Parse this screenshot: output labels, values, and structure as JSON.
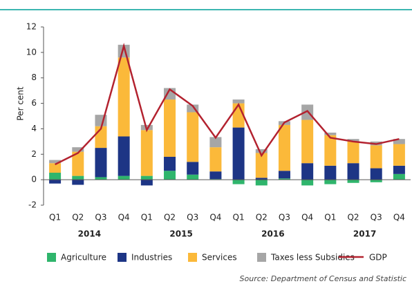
{
  "chart_data": {
    "type": "stacked_bar_line",
    "y_label": "Per cent",
    "categories": [
      "Q1",
      "Q2",
      "Q3",
      "Q4",
      "Q1",
      "Q2",
      "Q3",
      "Q4",
      "Q1",
      "Q2",
      "Q3",
      "Q4",
      "Q1",
      "Q2",
      "Q3",
      "Q4"
    ],
    "year_groups": [
      "2014",
      "2015",
      "2016",
      "2017"
    ],
    "series": [
      {
        "name": "Agriculture",
        "color": "#2fb56c",
        "values": [
          0.55,
          0.3,
          0.2,
          0.3,
          0.3,
          0.7,
          0.4,
          0.05,
          -0.35,
          -0.45,
          0.1,
          -0.45,
          -0.35,
          -0.25,
          -0.2,
          0.45
        ]
      },
      {
        "name": "Industries",
        "color": "#1d3585",
        "values": [
          -0.3,
          -0.4,
          2.3,
          3.1,
          -0.45,
          1.1,
          1.0,
          0.6,
          4.1,
          0.15,
          0.6,
          1.3,
          1.1,
          1.3,
          0.9,
          0.65
        ]
      },
      {
        "name": "Services",
        "color": "#fbb93a",
        "values": [
          0.75,
          1.9,
          1.7,
          6.2,
          3.6,
          4.5,
          3.9,
          1.9,
          1.9,
          1.95,
          3.6,
          3.4,
          2.4,
          1.7,
          1.8,
          1.7
        ]
      },
      {
        "name": "Taxes less Subsidies",
        "color": "#a6a6a6",
        "values": [
          0.25,
          0.35,
          0.9,
          1.0,
          0.4,
          0.9,
          0.6,
          0.8,
          0.3,
          0.3,
          0.3,
          1.2,
          0.2,
          0.2,
          0.3,
          0.4
        ]
      },
      {
        "name": "GDP",
        "color": "#b3222f",
        "kind": "line",
        "values": [
          1.2,
          2.1,
          4.0,
          10.5,
          3.9,
          7.1,
          5.8,
          3.3,
          5.9,
          1.9,
          4.5,
          5.4,
          3.3,
          3.0,
          2.8,
          3.2
        ]
      }
    ],
    "ylim": [
      -2,
      12
    ],
    "yticks": [
      -2,
      0,
      2,
      4,
      6,
      8,
      10,
      12
    ],
    "source": "Source: Department of Census and Statistic"
  }
}
